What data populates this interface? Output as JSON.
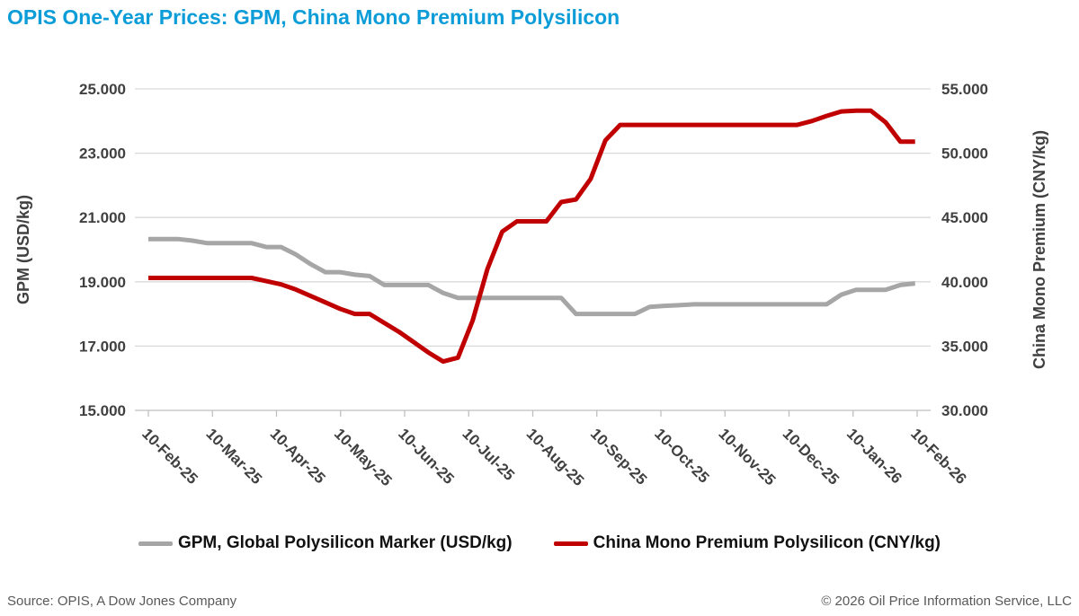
{
  "title": "OPIS One-Year Prices: GPM, China Mono Premium Polysilicon",
  "footer": {
    "source": "Source: OPIS, A Dow Jones Company",
    "copyright": "© 2026 Oil Price Information Service, LLC"
  },
  "colors": {
    "title": "#0C9DD8",
    "gridline": "#D9D9D9",
    "axis_line": "#BFBFBF",
    "tick_text": "#404040",
    "gpm_line": "#A6A6A6",
    "cny_line": "#C00000",
    "footer_text": "#595959"
  },
  "chart_data": {
    "type": "line",
    "title": "OPIS One-Year Prices: GPM, China Mono Premium Polysilicon",
    "x_tick_labels": [
      "10-Feb-25",
      "10-Mar-25",
      "10-Apr-25",
      "10-May-25",
      "10-Jun-25",
      "10-Jul-25",
      "10-Aug-25",
      "10-Sep-25",
      "10-Oct-25",
      "10-Nov-25",
      "10-Dec-25",
      "10-Jan-26",
      "10-Feb-26"
    ],
    "x_range_days": [
      0,
      365
    ],
    "x_days": [
      0,
      7,
      14,
      21,
      28,
      35,
      42,
      49,
      56,
      63,
      70,
      77,
      84,
      91,
      98,
      105,
      112,
      119,
      126,
      133,
      140,
      147,
      154,
      161,
      168,
      175,
      182,
      189,
      196,
      203,
      210,
      217,
      224,
      231,
      238,
      245,
      252,
      259,
      266,
      273,
      280,
      287,
      294,
      301,
      308,
      315,
      322,
      329,
      336,
      343,
      350,
      357,
      364
    ],
    "left_axis": {
      "label": "GPM (USD/kg)",
      "ticks": [
        "25.000",
        "23.000",
        "21.000",
        "19.000",
        "17.000",
        "15.000"
      ],
      "range": [
        15,
        25
      ]
    },
    "right_axis": {
      "label": "China Mono Premium (CNY/kg)",
      "ticks": [
        "55.000",
        "50.000",
        "45.000",
        "40.000",
        "35.000",
        "30.000"
      ],
      "range": [
        30,
        55
      ]
    },
    "legend_position": "bottom",
    "grid": "horizontal",
    "series": [
      {
        "name": "GPM, Global Polysilicon Marker (USD/kg)",
        "axis": "left",
        "color": "#A6A6A6",
        "values": [
          20.33,
          20.33,
          20.33,
          20.28,
          20.2,
          20.2,
          20.2,
          20.2,
          20.08,
          20.08,
          19.85,
          19.55,
          19.3,
          19.3,
          19.22,
          19.18,
          18.9,
          18.9,
          18.9,
          18.9,
          18.65,
          18.5,
          18.5,
          18.5,
          18.5,
          18.5,
          18.5,
          18.5,
          18.5,
          18.0,
          18.0,
          18.0,
          18.0,
          18.0,
          18.22,
          18.25,
          18.27,
          18.3,
          18.3,
          18.3,
          18.3,
          18.3,
          18.3,
          18.3,
          18.3,
          18.3,
          18.3,
          18.6,
          18.75,
          18.75,
          18.75,
          18.9,
          18.95
        ]
      },
      {
        "name": "China Mono Premium Polysilicon (CNY/kg)",
        "axis": "right",
        "color": "#C00000",
        "values": [
          40.3,
          40.3,
          40.3,
          40.3,
          40.3,
          40.3,
          40.3,
          40.3,
          40.05,
          39.8,
          39.4,
          38.9,
          38.4,
          37.9,
          37.5,
          37.5,
          36.8,
          36.1,
          35.3,
          34.5,
          33.8,
          34.1,
          37.0,
          41.0,
          43.9,
          44.7,
          44.7,
          44.7,
          46.2,
          46.4,
          48.0,
          51.0,
          52.2,
          52.2,
          52.2,
          52.2,
          52.2,
          52.2,
          52.2,
          52.2,
          52.2,
          52.2,
          52.2,
          52.2,
          52.2,
          52.5,
          52.9,
          53.25,
          53.3,
          53.3,
          52.4,
          50.9,
          50.9
        ]
      }
    ]
  }
}
